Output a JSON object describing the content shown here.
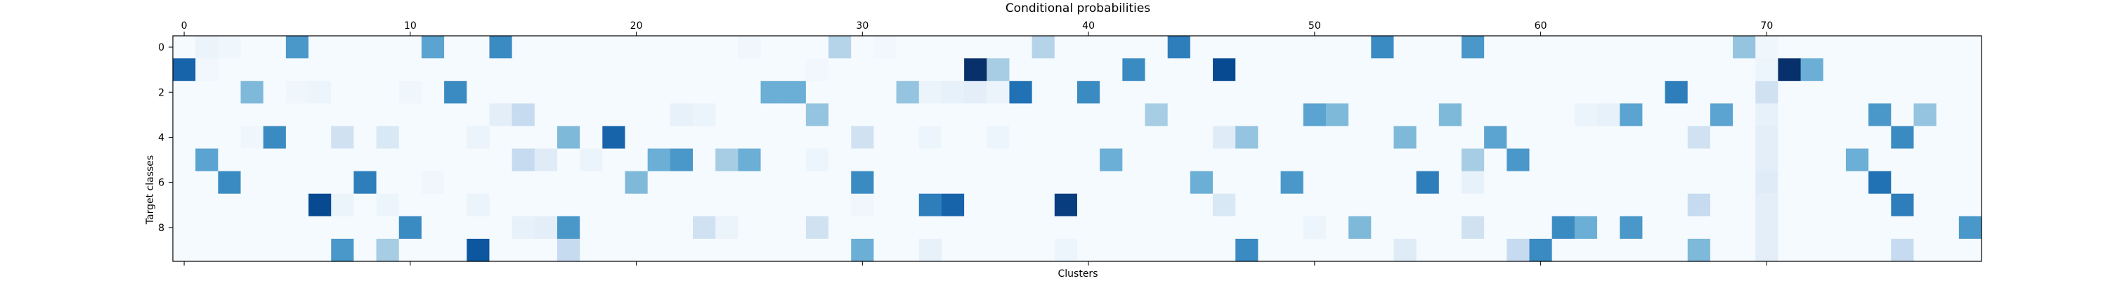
{
  "chart_data": {
    "type": "heatmap",
    "title": "Conditional probabilities",
    "xlabel": "Clusters",
    "ylabel": "Target classes",
    "x_ticks": [
      0,
      10,
      20,
      30,
      40,
      50,
      60,
      70
    ],
    "y_ticks": [
      0,
      2,
      4,
      6,
      8
    ],
    "n_cols": 80,
    "n_rows": 10,
    "colormap": "Blues",
    "grid": false,
    "background_value": 0.01,
    "cells": [
      [
        0,
        5,
        0.6
      ],
      [
        0,
        11,
        0.55
      ],
      [
        0,
        14,
        0.65
      ],
      [
        0,
        29,
        0.3
      ],
      [
        0,
        38,
        0.3
      ],
      [
        0,
        44,
        0.7
      ],
      [
        0,
        53,
        0.65
      ],
      [
        0,
        57,
        0.6
      ],
      [
        0,
        69,
        0.4
      ],
      [
        0,
        1,
        0.06
      ],
      [
        0,
        2,
        0.04
      ],
      [
        0,
        25,
        0.04
      ],
      [
        0,
        31,
        0.03
      ],
      [
        0,
        70,
        0.04
      ],
      [
        1,
        0,
        0.8
      ],
      [
        1,
        35,
        1.0
      ],
      [
        1,
        36,
        0.35
      ],
      [
        1,
        42,
        0.65
      ],
      [
        1,
        46,
        0.9
      ],
      [
        1,
        71,
        1.0
      ],
      [
        1,
        72,
        0.5
      ],
      [
        1,
        1,
        0.03
      ],
      [
        1,
        28,
        0.03
      ],
      [
        1,
        70,
        0.05
      ],
      [
        2,
        3,
        0.45
      ],
      [
        2,
        12,
        0.65
      ],
      [
        2,
        26,
        0.5
      ],
      [
        2,
        27,
        0.5
      ],
      [
        2,
        32,
        0.4
      ],
      [
        2,
        37,
        0.75
      ],
      [
        2,
        40,
        0.65
      ],
      [
        2,
        66,
        0.7
      ],
      [
        2,
        70,
        0.2
      ],
      [
        2,
        33,
        0.06
      ],
      [
        2,
        34,
        0.08
      ],
      [
        2,
        35,
        0.1
      ],
      [
        2,
        36,
        0.06
      ],
      [
        2,
        5,
        0.04
      ],
      [
        2,
        6,
        0.05
      ],
      [
        2,
        10,
        0.04
      ],
      [
        3,
        15,
        0.25
      ],
      [
        3,
        28,
        0.4
      ],
      [
        3,
        43,
        0.35
      ],
      [
        3,
        50,
        0.55
      ],
      [
        3,
        51,
        0.45
      ],
      [
        3,
        56,
        0.45
      ],
      [
        3,
        64,
        0.55
      ],
      [
        3,
        68,
        0.55
      ],
      [
        3,
        75,
        0.6
      ],
      [
        3,
        77,
        0.4
      ],
      [
        3,
        14,
        0.1
      ],
      [
        3,
        22,
        0.08
      ],
      [
        3,
        23,
        0.06
      ],
      [
        3,
        62,
        0.06
      ],
      [
        3,
        63,
        0.08
      ],
      [
        3,
        70,
        0.08
      ],
      [
        4,
        4,
        0.65
      ],
      [
        4,
        7,
        0.2
      ],
      [
        4,
        9,
        0.15
      ],
      [
        4,
        17,
        0.45
      ],
      [
        4,
        19,
        0.8
      ],
      [
        4,
        30,
        0.2
      ],
      [
        4,
        46,
        0.12
      ],
      [
        4,
        47,
        0.4
      ],
      [
        4,
        54,
        0.45
      ],
      [
        4,
        58,
        0.55
      ],
      [
        4,
        67,
        0.2
      ],
      [
        4,
        76,
        0.65
      ],
      [
        4,
        13,
        0.06
      ],
      [
        4,
        3,
        0.04
      ],
      [
        4,
        33,
        0.05
      ],
      [
        4,
        36,
        0.05
      ],
      [
        4,
        70,
        0.1
      ],
      [
        5,
        1,
        0.55
      ],
      [
        5,
        15,
        0.25
      ],
      [
        5,
        16,
        0.12
      ],
      [
        5,
        21,
        0.5
      ],
      [
        5,
        22,
        0.6
      ],
      [
        5,
        24,
        0.35
      ],
      [
        5,
        25,
        0.5
      ],
      [
        5,
        41,
        0.5
      ],
      [
        5,
        57,
        0.35
      ],
      [
        5,
        59,
        0.6
      ],
      [
        5,
        74,
        0.5
      ],
      [
        5,
        18,
        0.06
      ],
      [
        5,
        28,
        0.05
      ],
      [
        5,
        70,
        0.1
      ],
      [
        6,
        2,
        0.65
      ],
      [
        6,
        8,
        0.7
      ],
      [
        6,
        20,
        0.45
      ],
      [
        6,
        30,
        0.65
      ],
      [
        6,
        45,
        0.5
      ],
      [
        6,
        49,
        0.6
      ],
      [
        6,
        55,
        0.7
      ],
      [
        6,
        75,
        0.75
      ],
      [
        6,
        57,
        0.08
      ],
      [
        6,
        70,
        0.12
      ],
      [
        6,
        11,
        0.04
      ],
      [
        7,
        6,
        0.9
      ],
      [
        7,
        9,
        0.05
      ],
      [
        7,
        33,
        0.7
      ],
      [
        7,
        34,
        0.8
      ],
      [
        7,
        39,
        0.95
      ],
      [
        7,
        46,
        0.15
      ],
      [
        7,
        67,
        0.25
      ],
      [
        7,
        76,
        0.7
      ],
      [
        7,
        7,
        0.06
      ],
      [
        7,
        13,
        0.06
      ],
      [
        7,
        30,
        0.04
      ],
      [
        7,
        70,
        0.1
      ],
      [
        8,
        10,
        0.65
      ],
      [
        8,
        17,
        0.6
      ],
      [
        8,
        23,
        0.2
      ],
      [
        8,
        28,
        0.2
      ],
      [
        8,
        52,
        0.45
      ],
      [
        8,
        57,
        0.2
      ],
      [
        8,
        61,
        0.65
      ],
      [
        8,
        62,
        0.5
      ],
      [
        8,
        64,
        0.6
      ],
      [
        8,
        79,
        0.6
      ],
      [
        8,
        15,
        0.08
      ],
      [
        8,
        16,
        0.1
      ],
      [
        8,
        24,
        0.06
      ],
      [
        8,
        50,
        0.05
      ],
      [
        8,
        70,
        0.1
      ],
      [
        9,
        7,
        0.6
      ],
      [
        9,
        9,
        0.35
      ],
      [
        9,
        13,
        0.85
      ],
      [
        9,
        17,
        0.25
      ],
      [
        9,
        30,
        0.5
      ],
      [
        9,
        47,
        0.65
      ],
      [
        9,
        54,
        0.12
      ],
      [
        9,
        59,
        0.25
      ],
      [
        9,
        60,
        0.65
      ],
      [
        9,
        67,
        0.45
      ],
      [
        9,
        76,
        0.25
      ],
      [
        9,
        33,
        0.08
      ],
      [
        9,
        39,
        0.05
      ],
      [
        9,
        70,
        0.1
      ]
    ]
  }
}
